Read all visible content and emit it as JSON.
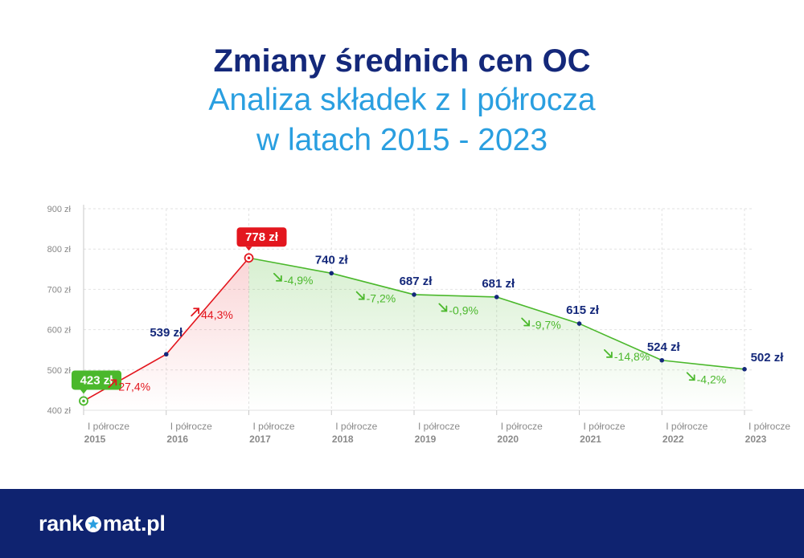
{
  "title": "Zmiany średnich cen OC",
  "subtitle_line1": "Analiza składek z I półrocza",
  "subtitle_line2": "w latach 2015 - 2023",
  "brand": {
    "name_part1": "rank",
    "name_part2": "mat.pl",
    "footer_color": "#0f2370"
  },
  "colors": {
    "up": "#e3161e",
    "down": "#4bb82c",
    "value": "#14287a",
    "grid": "#e2e2e2",
    "tick": "#888888"
  },
  "chart_data": {
    "type": "line",
    "title": "Zmiany średnich cen OC",
    "xlabel": "",
    "ylabel": "",
    "ylim": [
      400,
      900
    ],
    "yticks": [
      "400 zł",
      "500 zł",
      "600 zł",
      "700 zł",
      "800 zł",
      "900 zł"
    ],
    "categories": [
      [
        "I półrocze",
        "2015"
      ],
      [
        "I półrocze",
        "2016"
      ],
      [
        "I półrocze",
        "2017"
      ],
      [
        "I półrocze",
        "2018"
      ],
      [
        "I półrocze",
        "2019"
      ],
      [
        "I półrocze",
        "2020"
      ],
      [
        "I półrocze",
        "2021"
      ],
      [
        "I półrocze",
        "2022"
      ],
      [
        "I półrocze",
        "2023"
      ]
    ],
    "values": [
      423,
      539,
      778,
      740,
      687,
      681,
      615,
      524,
      502
    ],
    "value_labels": [
      "423 zł",
      "539 zł",
      "778 zł",
      "740 zł",
      "687 zł",
      "681 zł",
      "615 zł",
      "524 zł",
      "502 zł"
    ],
    "changes": [
      "27,4%",
      "44,3%",
      "-4,9%",
      "-7,2%",
      "-0,9%",
      "-9,7%",
      "-14,8%",
      "-4,2%"
    ],
    "highlight_min": 0,
    "highlight_max": 2
  }
}
